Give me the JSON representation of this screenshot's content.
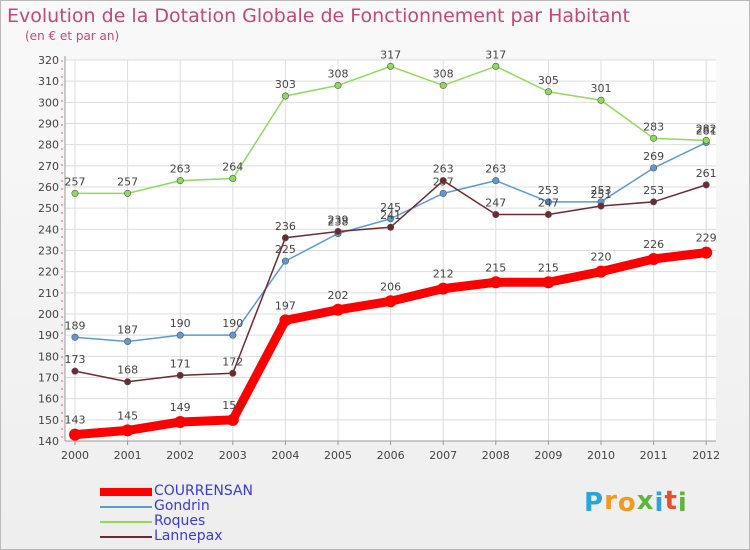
{
  "title": "Evolution de la Dotation Globale de Fonctionnement par Habitant",
  "subtitle": "(en € et par an)",
  "logo": {
    "letters": [
      "P",
      "r",
      "o",
      "x",
      "i",
      "t",
      "i"
    ],
    "colors": [
      "#2aa4d9",
      "#f29a1f",
      "#f29a1f",
      "#5fb63c",
      "#2aa4d9",
      "#e8502c",
      "#5fb63c"
    ]
  },
  "chart_data": {
    "type": "line",
    "x": [
      2000,
      2001,
      2002,
      2003,
      2004,
      2005,
      2006,
      2007,
      2008,
      2009,
      2010,
      2011,
      2012
    ],
    "ylim": [
      140,
      320
    ],
    "ytick_step": 10,
    "grid": true,
    "legend_position": "bottom-left",
    "series": [
      {
        "name": "COURRENSAN",
        "color": "#ff0000",
        "values": [
          143,
          145,
          149,
          150,
          197,
          202,
          206,
          212,
          215,
          215,
          220,
          226,
          229
        ]
      },
      {
        "name": "Gondrin",
        "color": "#5b9bd5",
        "values": [
          189,
          187,
          190,
          190,
          225,
          238,
          245,
          257,
          263,
          253,
          253,
          269,
          281
        ]
      },
      {
        "name": "Roques",
        "color": "#8fda5a",
        "values": [
          257,
          257,
          263,
          264,
          303,
          308,
          317,
          308,
          317,
          305,
          301,
          283,
          282
        ]
      },
      {
        "name": "Lannepax",
        "color": "#6e2a30",
        "values": [
          173,
          168,
          171,
          172,
          236,
          239,
          241,
          263,
          247,
          247,
          251,
          253,
          261
        ]
      }
    ]
  }
}
